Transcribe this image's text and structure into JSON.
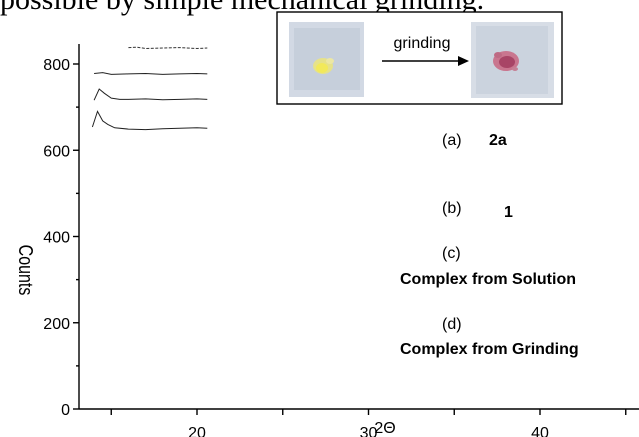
{
  "top_text": "possible by simple mechanical grinding.",
  "inset": {
    "arrow_label": "grinding"
  },
  "chart_data": {
    "type": "line",
    "xlabel": "2Θ",
    "ylabel": "Counts",
    "xlim": [
      13.5,
      45
    ],
    "ylim": [
      0,
      850
    ],
    "x_ticks": [
      20,
      30,
      40
    ],
    "x_tick_labels": [
      "20",
      "30",
      "40"
    ],
    "y_ticks": [
      0,
      200,
      400,
      600,
      800
    ],
    "y_tick_labels": [
      "0",
      "200",
      "400",
      "600",
      "800"
    ],
    "series": [
      {
        "label_prefix": "(a)",
        "label_text": "2a",
        "label_bold": true,
        "x": [
          16.0,
          16.5,
          17.0,
          18.0,
          19.0,
          20.0,
          20.6
        ],
        "y": [
          838,
          839,
          836,
          837,
          838,
          836,
          837
        ]
      },
      {
        "label_prefix": "(b)",
        "label_text": "1",
        "label_bold": true,
        "x": [
          14.0,
          14.5,
          15.0,
          16.0,
          17.0,
          18.0,
          19.0,
          20.0,
          20.6
        ],
        "y": [
          778,
          780,
          776,
          777,
          778,
          776,
          777,
          778,
          777
        ]
      },
      {
        "label_prefix": "(c)",
        "label_text": "Complex from Solution",
        "label_bold": true,
        "x": [
          14.0,
          14.3,
          14.6,
          15.0,
          15.5,
          16.0,
          17.0,
          18.0,
          19.0,
          20.0,
          20.6
        ],
        "y": [
          716,
          742,
          732,
          721,
          718,
          718,
          719,
          717,
          718,
          719,
          718
        ]
      },
      {
        "label_prefix": "(d)",
        "label_text": "Complex from Grinding",
        "label_bold": true,
        "x": [
          13.9,
          14.2,
          14.5,
          14.8,
          15.2,
          16.0,
          17.0,
          18.0,
          19.0,
          20.0,
          20.6
        ],
        "y": [
          654,
          690,
          668,
          660,
          652,
          649,
          648,
          650,
          651,
          652,
          651
        ]
      }
    ]
  }
}
